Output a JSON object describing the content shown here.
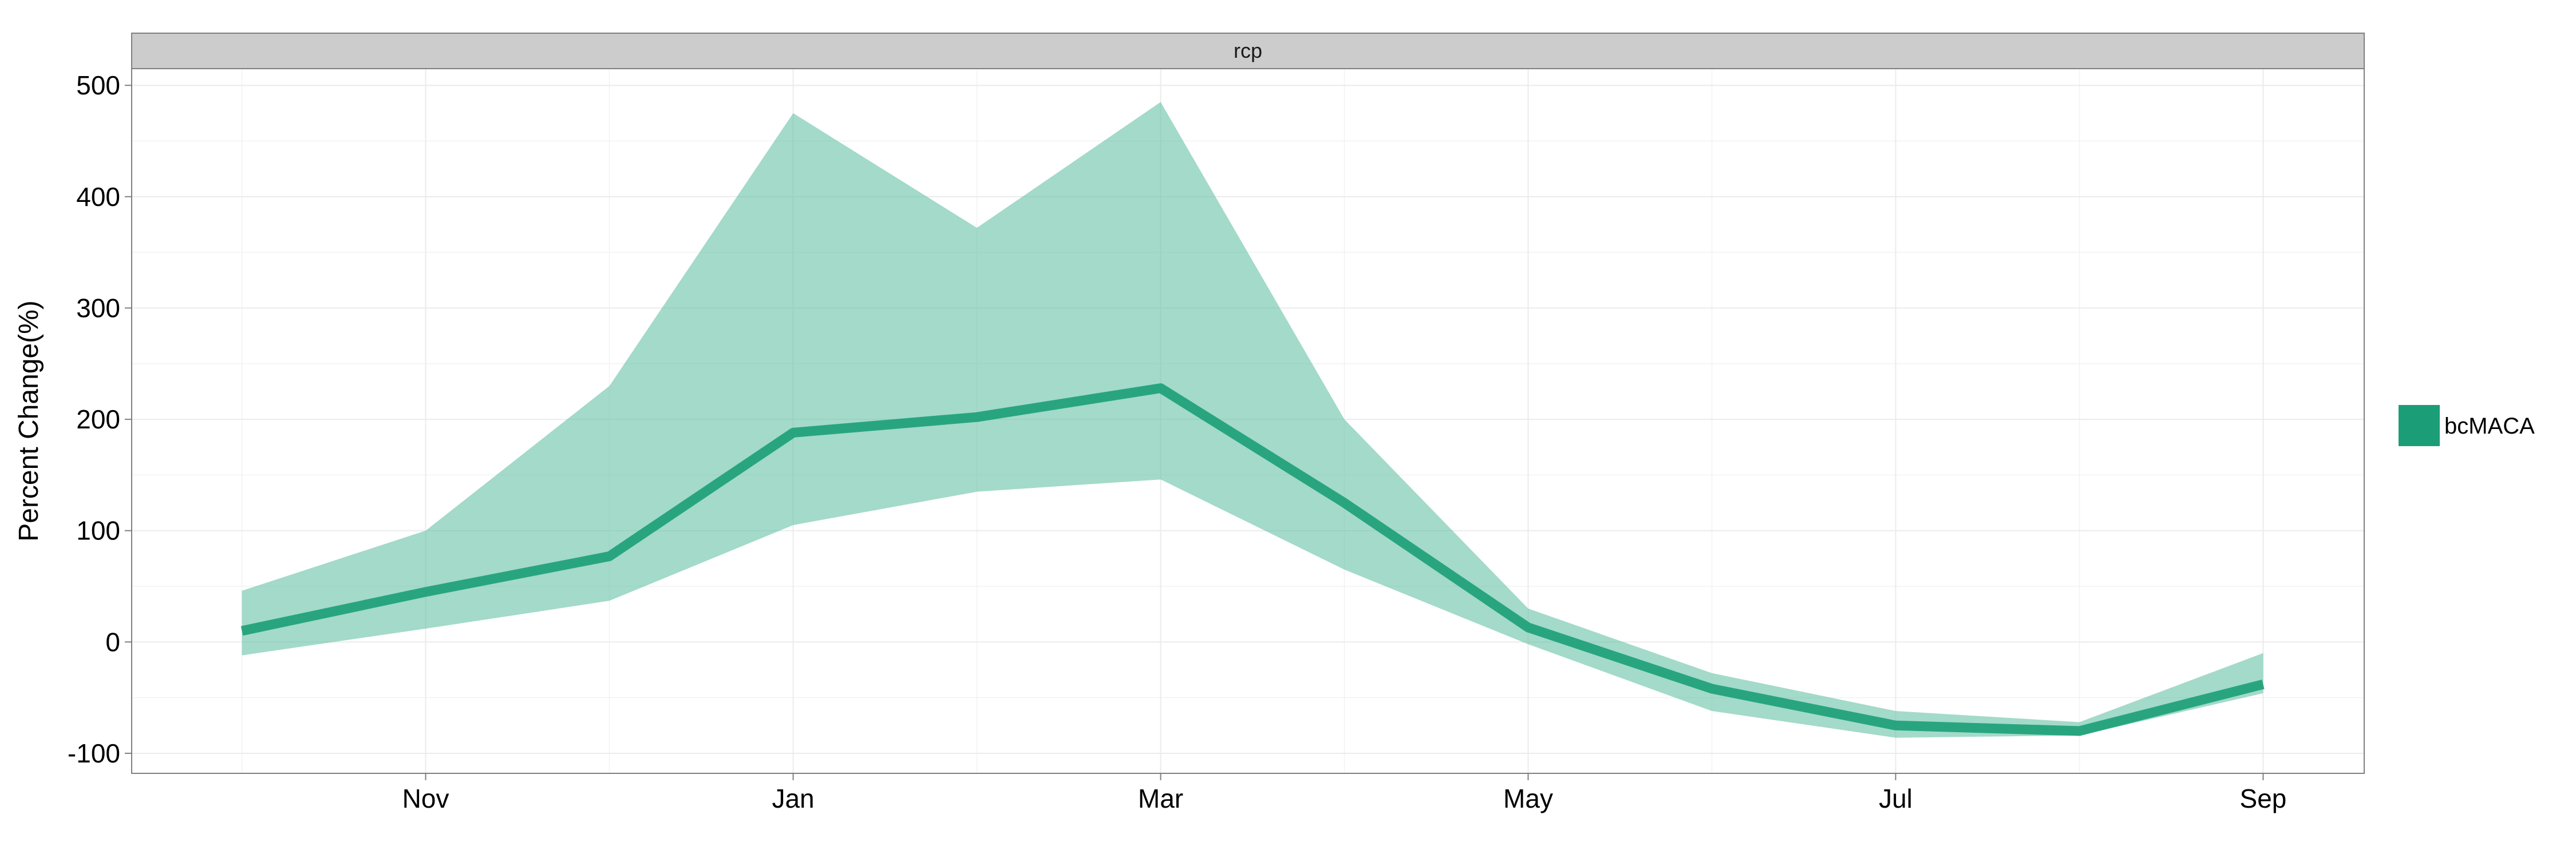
{
  "chart_data": {
    "type": "area",
    "facet_label": "rcp",
    "ylabel": "Percent Change(%)",
    "xlabel": "",
    "x_ticks": [
      {
        "label": "Nov",
        "x": 11
      },
      {
        "label": "Jan",
        "x": 13
      },
      {
        "label": "Mar",
        "x": 15
      },
      {
        "label": "May",
        "x": 17
      },
      {
        "label": "Jul",
        "x": 19
      },
      {
        "label": "Sep",
        "x": 21
      }
    ],
    "y_ticks": [
      -100,
      0,
      100,
      200,
      300,
      400,
      500
    ],
    "xlim": [
      9.4,
      21.55
    ],
    "ylim": [
      -118,
      515
    ],
    "grid": true,
    "legend_position": "right",
    "series": [
      {
        "name": "bcMACA",
        "color": "#1b9e77",
        "fill_color": "#66c2a5",
        "x": [
          10,
          11,
          12,
          13,
          14,
          15,
          16,
          17,
          18,
          19,
          20,
          21
        ],
        "values": [
          10,
          45,
          77,
          188,
          202,
          228,
          125,
          13,
          -42,
          -75,
          -80,
          -38
        ],
        "lower": [
          -12,
          12,
          37,
          105,
          135,
          146,
          65,
          -2,
          -62,
          -86,
          -84,
          -46
        ],
        "upper": [
          46,
          100,
          230,
          475,
          372,
          485,
          200,
          30,
          -28,
          -62,
          -72,
          -10
        ]
      }
    ]
  }
}
